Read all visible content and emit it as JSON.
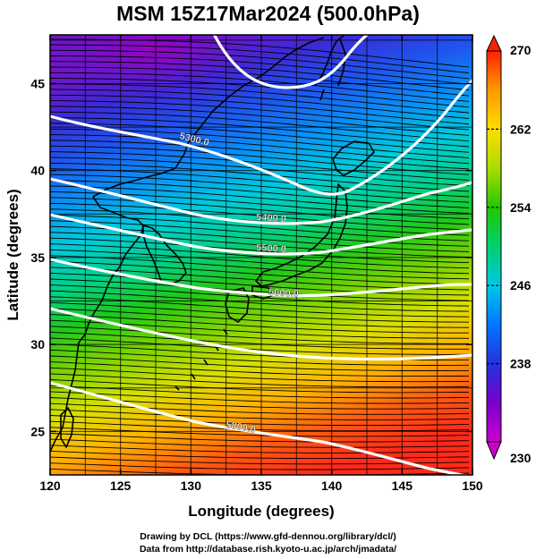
{
  "title": "MSM 15Z17Mar2024 (500.0hPa)",
  "x_axis": {
    "label": "Longitude (degrees)",
    "range": [
      120,
      150
    ],
    "ticks": [
      "120",
      "125",
      "130",
      "135",
      "140",
      "145",
      "150"
    ]
  },
  "y_axis": {
    "label": "Latitude  (degrees)",
    "range": [
      22.5,
      47.8
    ],
    "ticks": [
      "25",
      "30",
      "35",
      "40",
      "45"
    ]
  },
  "colorbar": {
    "min": 230,
    "max": 270,
    "ticks": [
      "230",
      "238",
      "246",
      "254",
      "262",
      "270"
    ]
  },
  "contour_labels": [
    "5300.0",
    "5400.0",
    "5500.0",
    "5600.0",
    "5800.0"
  ],
  "colors": {
    "temperature_scale": [
      "#cc00cc",
      "#7700cc",
      "#2233dd",
      "#0077ff",
      "#00c8e8",
      "#00d070",
      "#22c800",
      "#aadd00",
      "#ffdd00",
      "#ff9900",
      "#ff2200"
    ],
    "contour": "#ffffff",
    "coastline": "#000000",
    "vector": "#000000"
  },
  "footer": {
    "credit": "Drawing by DCL (https://www.gfd-dennou.org/library/dcl/)",
    "source": "Data from http://database.rish.kyoto-u.ac.jp/arch/jmadata/"
  }
}
